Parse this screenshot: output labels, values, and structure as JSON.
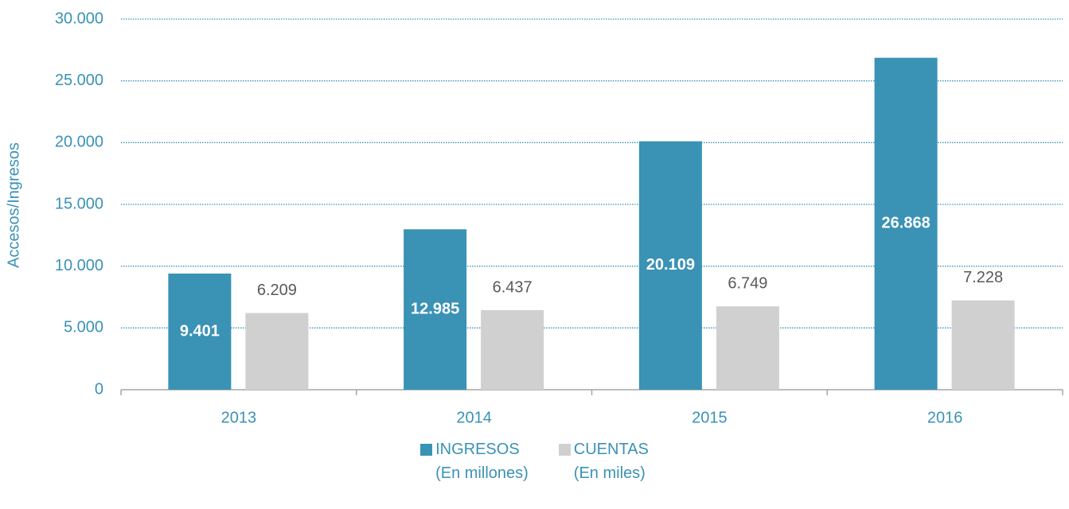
{
  "chart_data": {
    "type": "bar",
    "y_label": "Accesos/Ingresos",
    "categories": [
      "2013",
      "2014",
      "2015",
      "2016"
    ],
    "series": [
      {
        "name": "INGRESOS\n(En millones)",
        "color": "#3a92b5",
        "values": [
          9401,
          12985,
          20109,
          26868
        ],
        "value_labels": [
          "9.401",
          "12.985",
          "20.109",
          "26.868"
        ]
      },
      {
        "name": "CUENTAS\n(En miles)",
        "color": "#d0d0d1",
        "values": [
          6209,
          6437,
          6749,
          7228
        ],
        "value_labels": [
          "6.209",
          "6.437",
          "6.749",
          "7.228"
        ]
      }
    ],
    "ylim": [
      0,
      30000
    ],
    "yticks": [
      0,
      {
        "value": 5000,
        "label": "5.000"
      },
      {
        "value": 10000,
        "label": "10.000"
      },
      {
        "value": 15000,
        "label": "15.000"
      },
      {
        "value": 20000,
        "label": "20.000"
      },
      {
        "value": 25000,
        "label": "25.000"
      },
      {
        "value": 30000,
        "label": "30.000"
      }
    ],
    "grid": true
  }
}
